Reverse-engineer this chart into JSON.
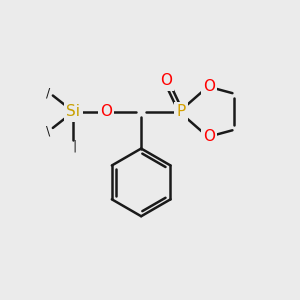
{
  "bg_color": "#ebebeb",
  "bond_color": "#1a1a1a",
  "bond_width": 1.8,
  "atom_colors": {
    "O": "#ff0000",
    "P": "#d4a000",
    "Si": "#c8a000",
    "C": "#1a1a1a"
  },
  "font_size_atom": 11,
  "fig_w": 3.0,
  "fig_h": 3.0,
  "dpi": 100
}
